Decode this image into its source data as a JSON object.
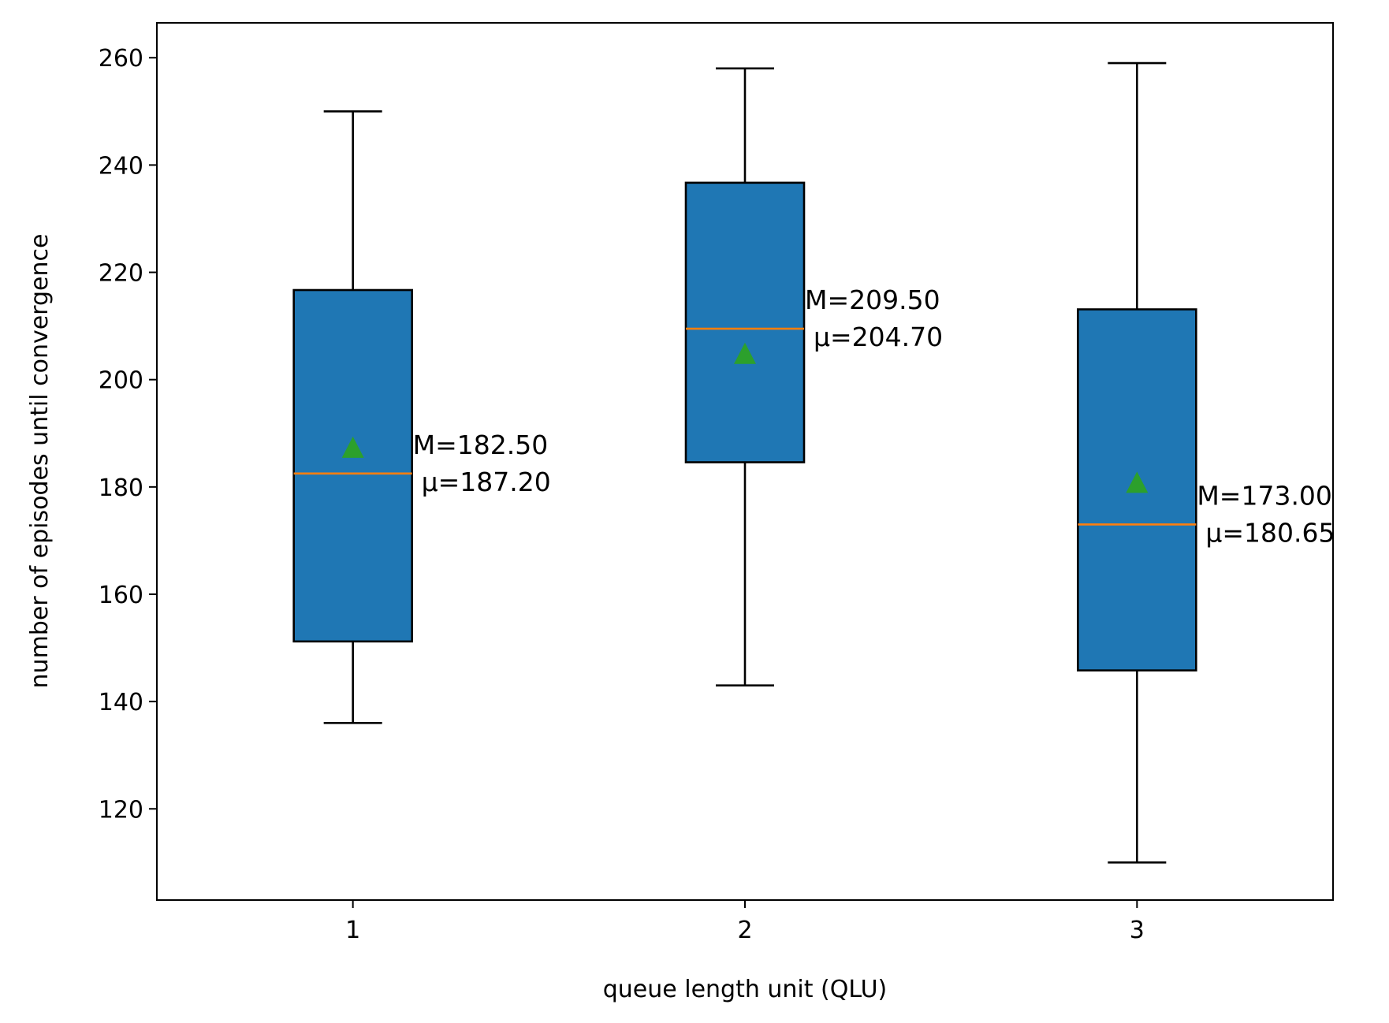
{
  "chart_data": {
    "type": "box",
    "title": "",
    "xlabel": "queue length unit (QLU)",
    "ylabel": "number of episodes until convergence",
    "categories": [
      "1",
      "2",
      "3"
    ],
    "xlim": [
      0.5,
      3.5
    ],
    "ylim": [
      103,
      266.5
    ],
    "yticks": [
      120,
      140,
      160,
      180,
      200,
      220,
      240,
      260
    ],
    "ytick_labels": [
      "120",
      "140",
      "160",
      "180",
      "200",
      "220",
      "240",
      "260"
    ],
    "boxes": [
      {
        "category": "1",
        "whisker_low": 136,
        "q1": 151.2,
        "median": 182.5,
        "q3": 216.7,
        "whisker_high": 250,
        "mean": 187.2,
        "label_median": "M=182.50",
        "label_mean": "μ=187.20"
      },
      {
        "category": "2",
        "whisker_low": 143,
        "q1": 184.6,
        "median": 209.5,
        "q3": 236.7,
        "whisker_high": 258,
        "mean": 204.7,
        "label_median": "M=209.50",
        "label_mean": "μ=204.70"
      },
      {
        "category": "3",
        "whisker_low": 110,
        "q1": 145.8,
        "median": 173.0,
        "q3": 213.1,
        "whisker_high": 259,
        "mean": 180.65,
        "label_median": "M=173.00",
        "label_mean": "μ=180.65"
      }
    ],
    "colors": {
      "box_fill": "#1f77b4",
      "median_line": "#ff7f0e",
      "mean_marker": "#2ca02c",
      "edge": "#000000"
    },
    "grid": false,
    "legend": "none"
  }
}
